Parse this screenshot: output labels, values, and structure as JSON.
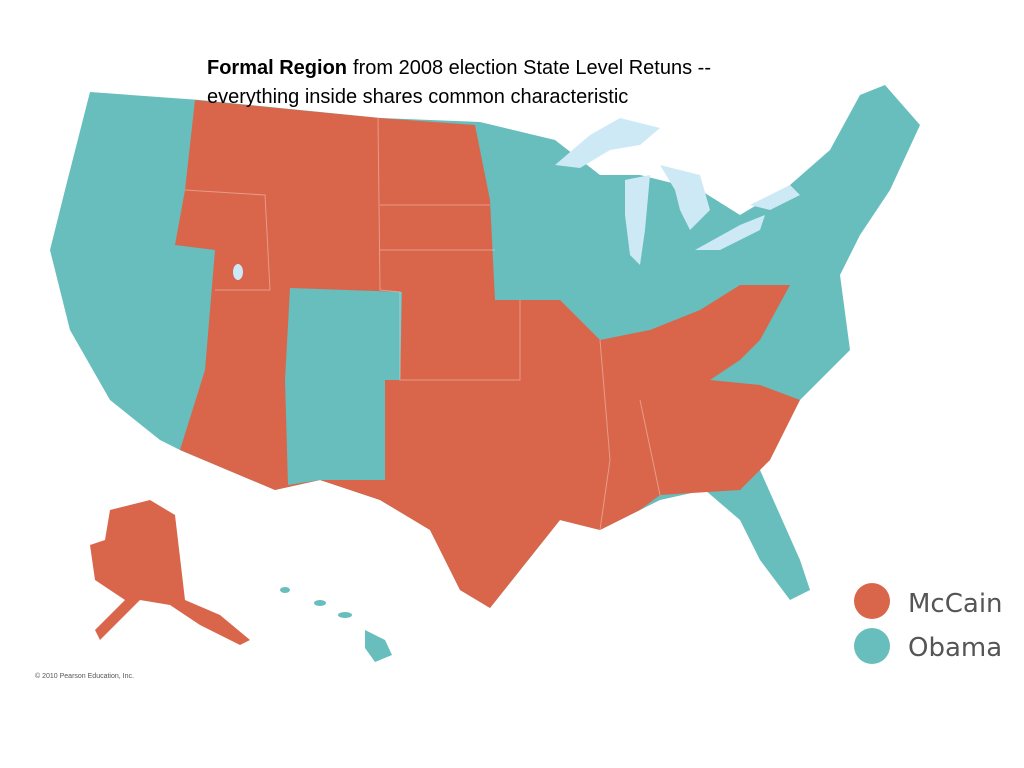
{
  "header": {
    "title_bold": "Formal Region",
    "title_rest": "from 2008 election State Level Retuns --",
    "title_line2": "everything inside shares common characteristic"
  },
  "legend": [
    {
      "label": "McCain",
      "color": "#d9664b"
    },
    {
      "label": "Obama",
      "color": "#68bdbd"
    }
  ],
  "lake_color": "#cde9f6",
  "credit": "© 2010 Pearson Education, Inc."
}
